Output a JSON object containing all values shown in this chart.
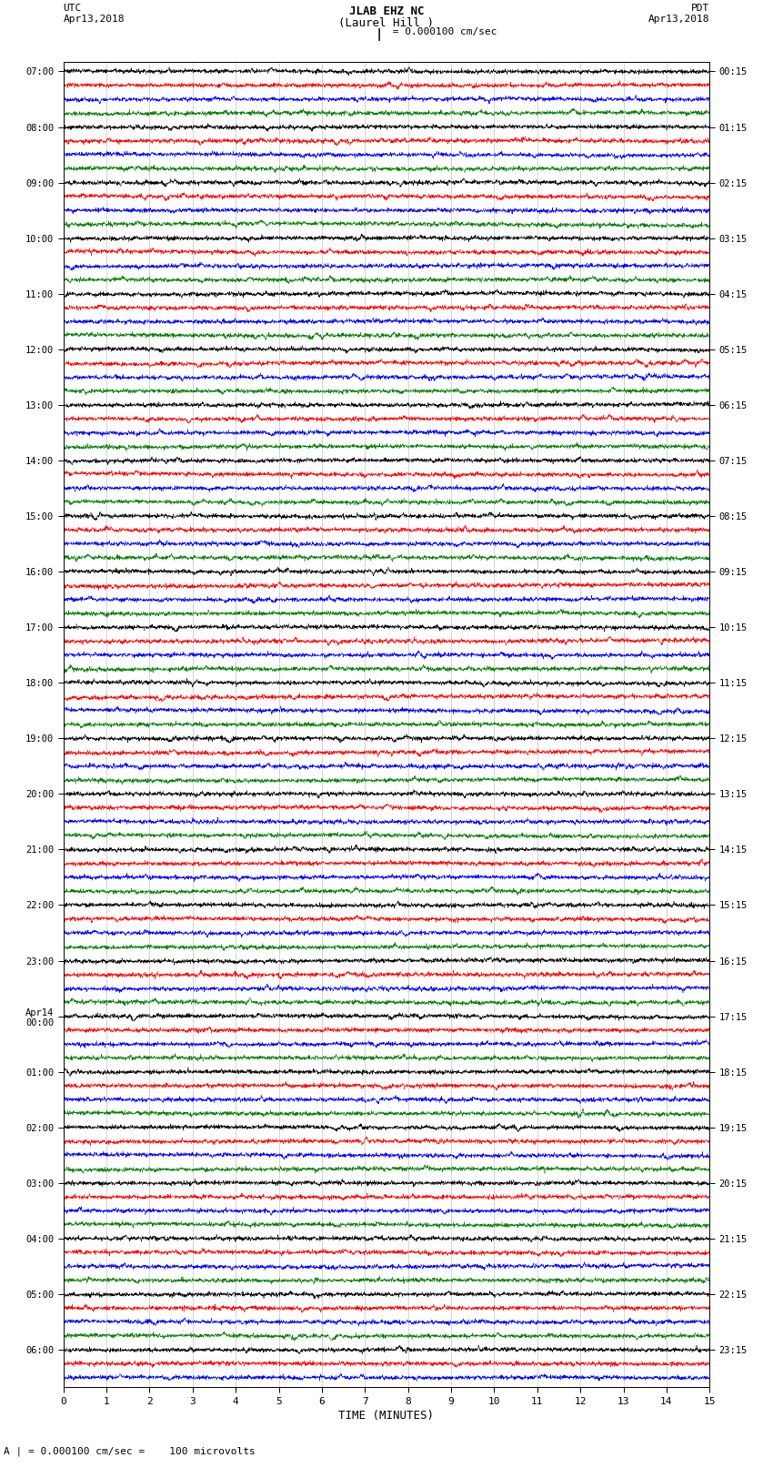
{
  "title_line1": "JLAB EHZ NC",
  "title_line2": "(Laurel Hill )",
  "scale_label": "= 0.000100 cm/sec",
  "utc_label1": "UTC",
  "utc_label2": "Apr13,2018",
  "pdt_label1": "PDT",
  "pdt_label2": "Apr13,2018",
  "bottom_label": "A | = 0.000100 cm/sec =    100 microvolts",
  "xlabel": "TIME (MINUTES)",
  "left_times": [
    "07:00",
    "",
    "",
    "",
    "08:00",
    "",
    "",
    "",
    "09:00",
    "",
    "",
    "",
    "10:00",
    "",
    "",
    "",
    "11:00",
    "",
    "",
    "",
    "12:00",
    "",
    "",
    "",
    "13:00",
    "",
    "",
    "",
    "14:00",
    "",
    "",
    "",
    "15:00",
    "",
    "",
    "",
    "16:00",
    "",
    "",
    "",
    "17:00",
    "",
    "",
    "",
    "18:00",
    "",
    "",
    "",
    "19:00",
    "",
    "",
    "",
    "20:00",
    "",
    "",
    "",
    "21:00",
    "",
    "",
    "",
    "22:00",
    "",
    "",
    "",
    "23:00",
    "",
    "",
    "",
    "Apr14\n00:00",
    "",
    "",
    "",
    "01:00",
    "",
    "",
    "",
    "02:00",
    "",
    "",
    "",
    "03:00",
    "",
    "",
    "",
    "04:00",
    "",
    "",
    "",
    "05:00",
    "",
    "",
    "",
    "06:00",
    "",
    ""
  ],
  "right_times": [
    "00:15",
    "",
    "",
    "",
    "01:15",
    "",
    "",
    "",
    "02:15",
    "",
    "",
    "",
    "03:15",
    "",
    "",
    "",
    "04:15",
    "",
    "",
    "",
    "05:15",
    "",
    "",
    "",
    "06:15",
    "",
    "",
    "",
    "07:15",
    "",
    "",
    "",
    "08:15",
    "",
    "",
    "",
    "09:15",
    "",
    "",
    "",
    "10:15",
    "",
    "",
    "",
    "11:15",
    "",
    "",
    "",
    "12:15",
    "",
    "",
    "",
    "13:15",
    "",
    "",
    "",
    "14:15",
    "",
    "",
    "",
    "15:15",
    "",
    "",
    "",
    "16:15",
    "",
    "",
    "",
    "17:15",
    "",
    "",
    "",
    "18:15",
    "",
    "",
    "",
    "19:15",
    "",
    "",
    "",
    "20:15",
    "",
    "",
    "",
    "21:15",
    "",
    "",
    "",
    "22:15",
    "",
    "",
    "",
    "23:15",
    "",
    ""
  ],
  "colors": [
    "black",
    "red",
    "blue",
    "green"
  ],
  "n_rows": 95,
  "n_minutes": 15,
  "bg_color": "white",
  "trace_amplitude": 0.38,
  "noise_base": 0.18,
  "spike_prob": 0.004,
  "spike_amplitude": 0.7
}
